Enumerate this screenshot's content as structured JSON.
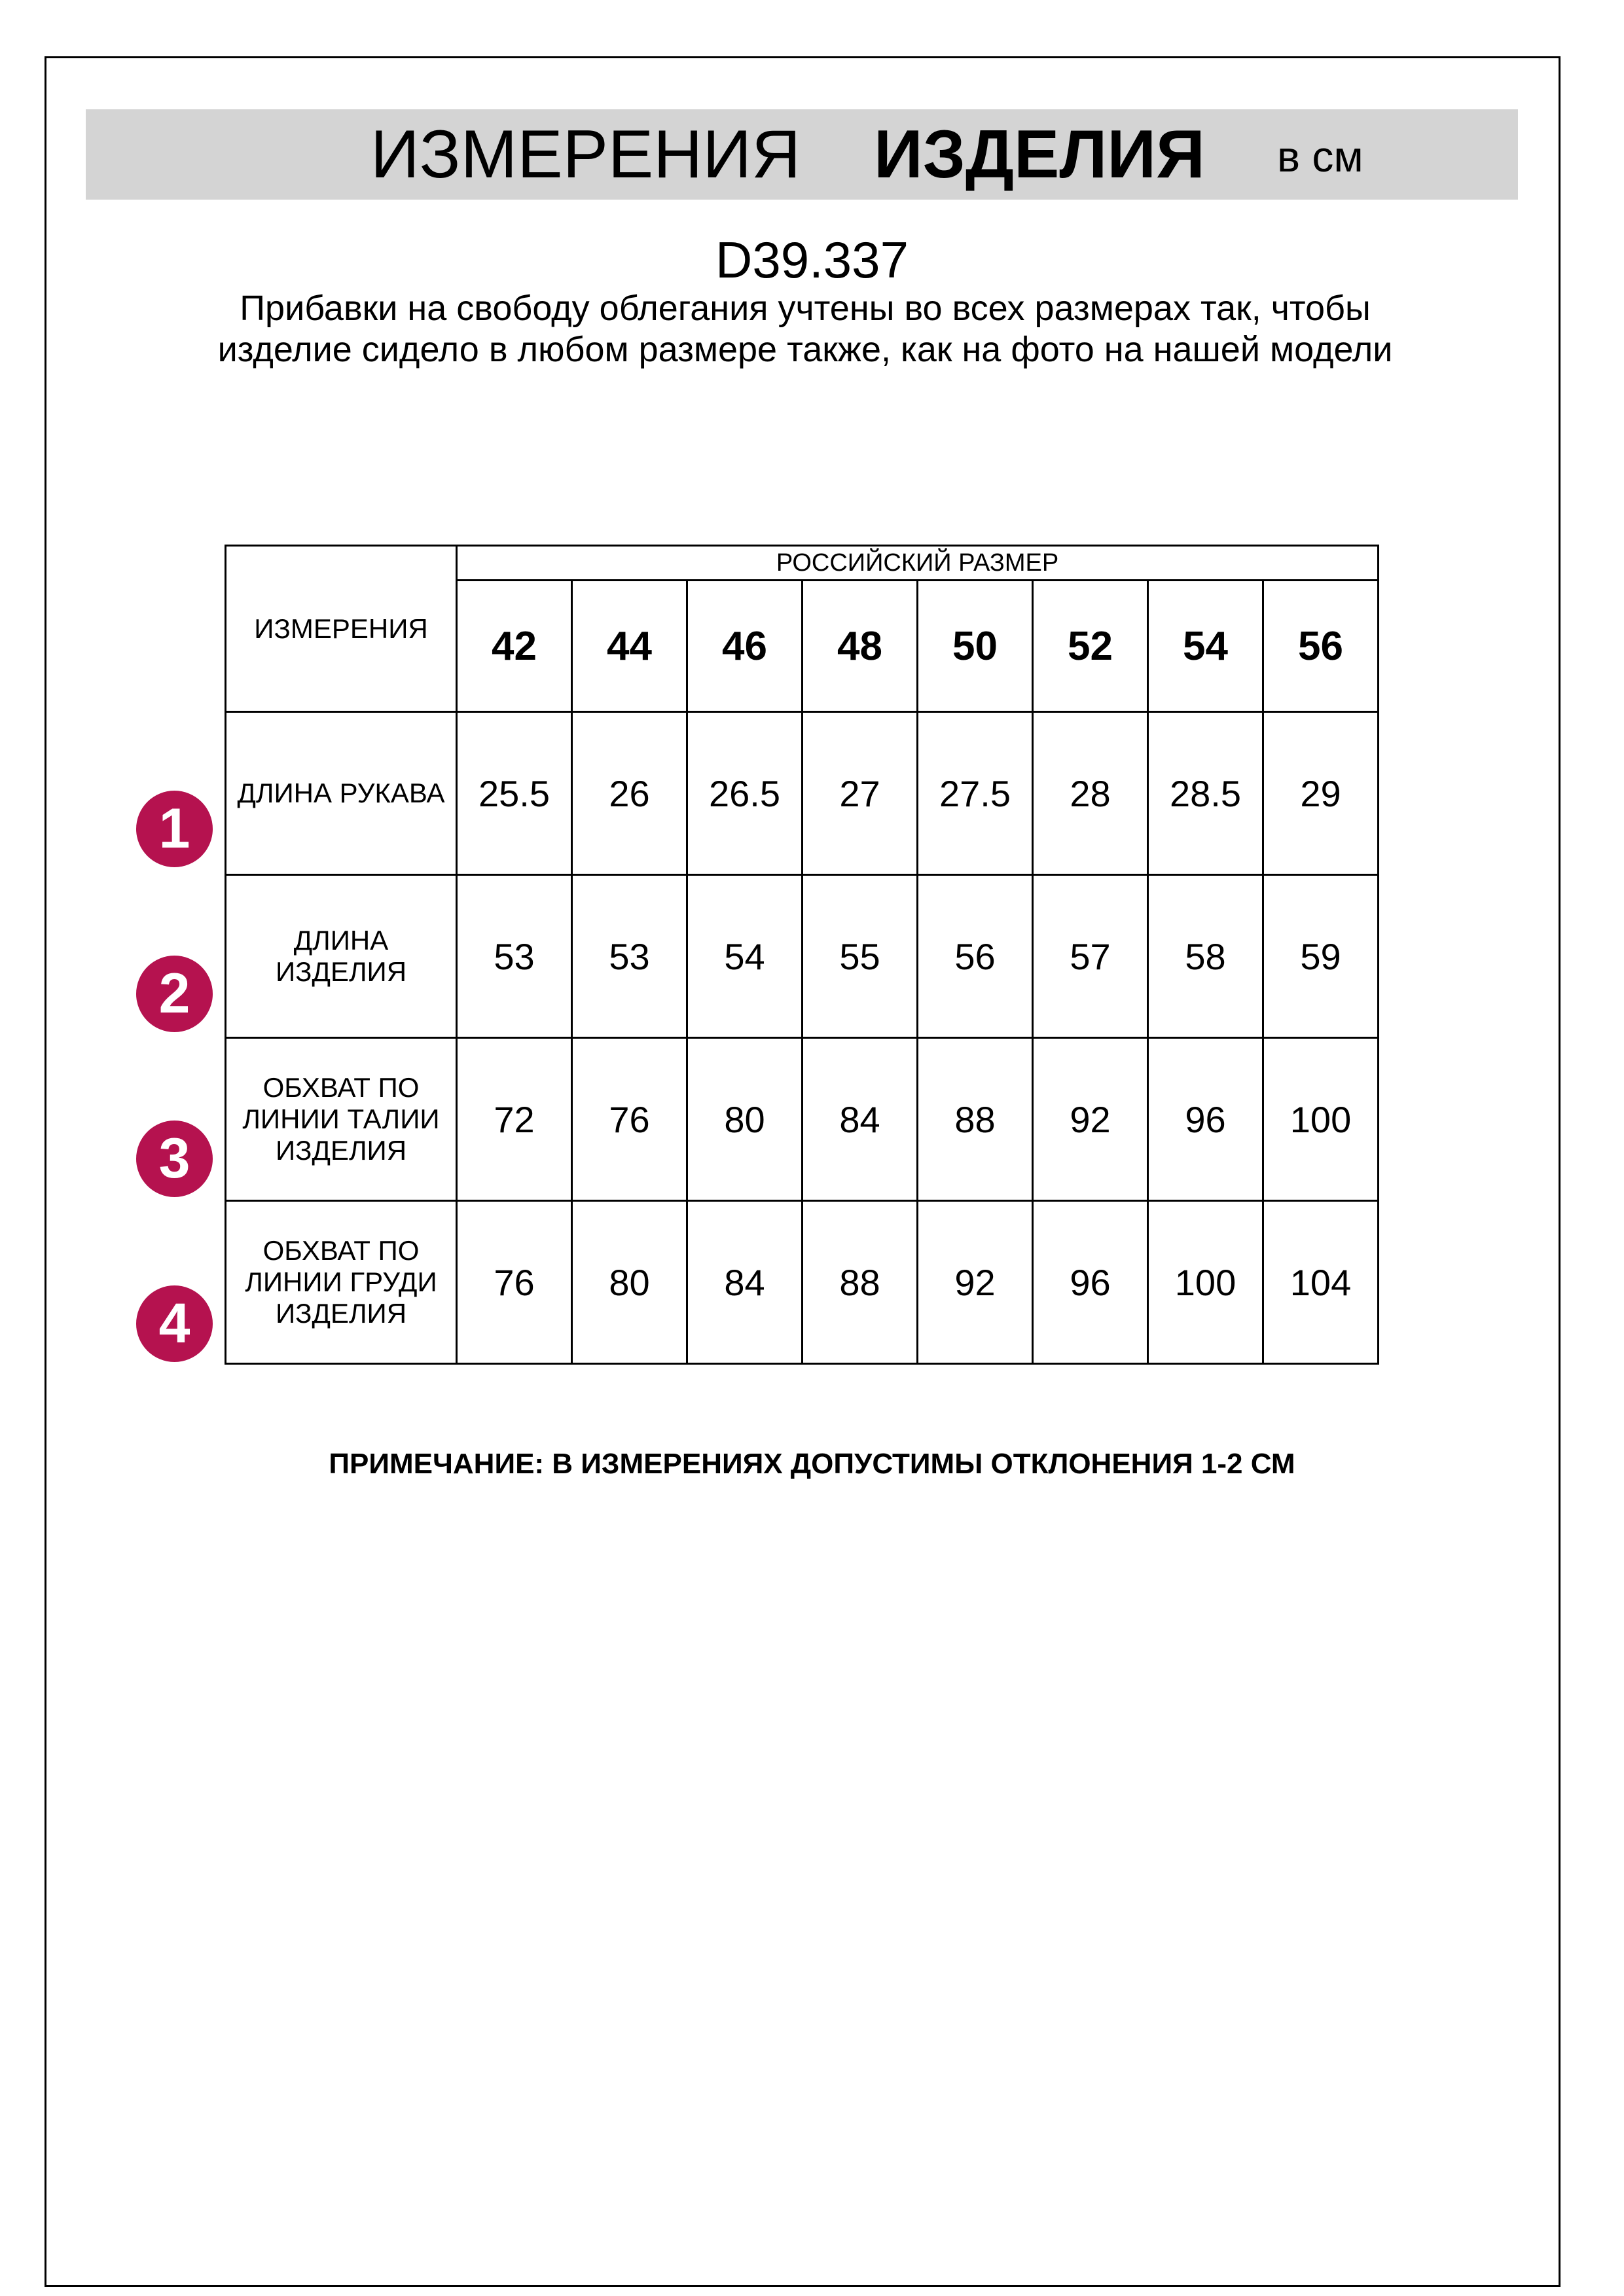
{
  "header": {
    "title_part1": "ИЗМЕРЕНИЯ",
    "title_part2": "ИЗДЕЛИЯ",
    "unit": "в см"
  },
  "product_code": "D39.337",
  "description": "Прибавки на свободу облегания учтены во всех размерах так, чтобы изделие сидело в любом размере также, как на фото на нашей модели",
  "table": {
    "measurements_header": "ИЗМЕРЕНИЯ",
    "size_group_header": "РОССИЙСКИЙ РАЗМЕР",
    "sizes": [
      "42",
      "44",
      "46",
      "48",
      "50",
      "52",
      "54",
      "56"
    ],
    "rows": [
      {
        "badge": "1",
        "label": "ДЛИНА РУКАВА",
        "values": [
          "25.5",
          "26",
          "26.5",
          "27",
          "27.5",
          "28",
          "28.5",
          "29"
        ]
      },
      {
        "badge": "2",
        "label": "ДЛИНА ИЗДЕЛИЯ",
        "values": [
          "53",
          "53",
          "54",
          "55",
          "56",
          "57",
          "58",
          "59"
        ]
      },
      {
        "badge": "3",
        "label": "ОБХВАТ ПО ЛИНИИ ТАЛИИ ИЗДЕЛИЯ",
        "values": [
          "72",
          "76",
          "80",
          "84",
          "88",
          "92",
          "96",
          "100"
        ]
      },
      {
        "badge": "4",
        "label": "ОБХВАТ ПО ЛИНИИ ГРУДИ ИЗДЕЛИЯ",
        "values": [
          "76",
          "80",
          "84",
          "88",
          "92",
          "96",
          "100",
          "104"
        ]
      }
    ]
  },
  "note": "ПРИМЕЧАНИЕ: В ИЗМЕРЕНИЯХ ДОПУСТИМЫ ОТКЛОНЕНИЯ 1-2 СМ",
  "colors": {
    "badge": "#b5124f",
    "header_band": "#d4d4d4"
  }
}
